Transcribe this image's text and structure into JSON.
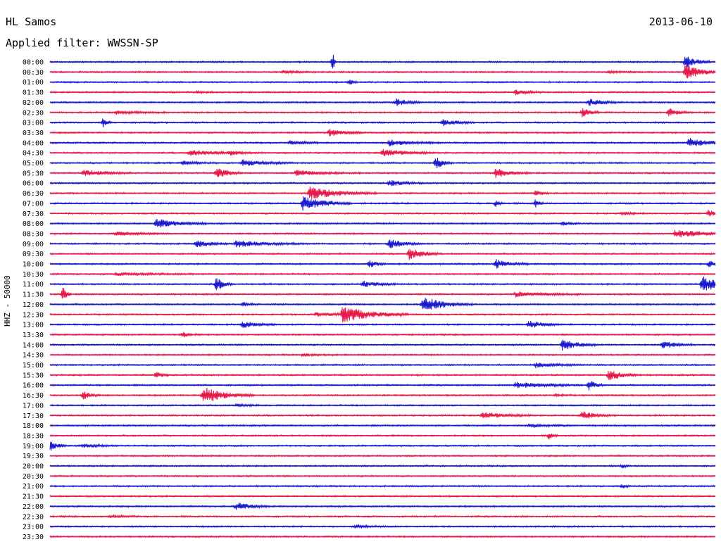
{
  "header": {
    "station": "HL Samos",
    "date": "2013-06-10",
    "filter": "Applied filter: WWSSN-SP"
  },
  "chart_data": {
    "type": "line",
    "title": "HL Samos",
    "subtitle": "Applied filter: WWSSN-SP",
    "ylabel": "HHZ - 50000",
    "date": "2013-06-10",
    "row_labels": [
      "00:00",
      "00:30",
      "01:00",
      "01:30",
      "02:00",
      "02:30",
      "03:00",
      "03:30",
      "04:00",
      "04:30",
      "05:00",
      "05:30",
      "06:00",
      "06:30",
      "07:00",
      "07:30",
      "08:00",
      "08:30",
      "09:00",
      "09:30",
      "10:00",
      "10:30",
      "11:00",
      "11:30",
      "12:00",
      "12:30",
      "13:00",
      "13:30",
      "14:00",
      "14:30",
      "15:00",
      "15:30",
      "16:00",
      "16:30",
      "17:00",
      "17:30",
      "18:00",
      "18:30",
      "19:00",
      "19:30",
      "20:00",
      "20:30",
      "21:00",
      "21:30",
      "22:00",
      "22:30",
      "23:00",
      "23:30"
    ],
    "colors": {
      "even_rows": "#1a1acd",
      "odd_rows": "#e6194b"
    },
    "grid": false,
    "events": [
      {
        "row": 0,
        "pos": 0.425,
        "amp": 1.8,
        "dur": 0.002
      },
      {
        "row": 0,
        "pos": 0.955,
        "amp": 1.0,
        "dur": 0.015
      },
      {
        "row": 1,
        "pos": 0.35,
        "amp": 0.2,
        "dur": 0.02
      },
      {
        "row": 1,
        "pos": 0.955,
        "amp": 1.2,
        "dur": 0.02
      },
      {
        "row": 1,
        "pos": 0.84,
        "amp": 0.15,
        "dur": 0.02
      },
      {
        "row": 2,
        "pos": 0.45,
        "amp": 0.5,
        "dur": 0.005
      },
      {
        "row": 3,
        "pos": 0.7,
        "amp": 0.4,
        "dur": 0.015
      },
      {
        "row": 3,
        "pos": 0.22,
        "amp": 0.1,
        "dur": 0.02
      },
      {
        "row": 4,
        "pos": 0.52,
        "amp": 0.6,
        "dur": 0.015
      },
      {
        "row": 4,
        "pos": 0.81,
        "amp": 0.5,
        "dur": 0.02
      },
      {
        "row": 5,
        "pos": 0.1,
        "amp": 0.25,
        "dur": 0.03
      },
      {
        "row": 5,
        "pos": 0.8,
        "amp": 0.7,
        "dur": 0.01
      },
      {
        "row": 5,
        "pos": 0.93,
        "amp": 0.6,
        "dur": 0.015
      },
      {
        "row": 6,
        "pos": 0.08,
        "amp": 0.7,
        "dur": 0.005
      },
      {
        "row": 6,
        "pos": 0.59,
        "amp": 0.5,
        "dur": 0.02
      },
      {
        "row": 7,
        "pos": 0.42,
        "amp": 0.6,
        "dur": 0.02
      },
      {
        "row": 8,
        "pos": 0.36,
        "amp": 0.3,
        "dur": 0.02
      },
      {
        "row": 8,
        "pos": 0.51,
        "amp": 0.5,
        "dur": 0.03
      },
      {
        "row": 8,
        "pos": 0.96,
        "amp": 0.7,
        "dur": 0.03
      },
      {
        "row": 9,
        "pos": 0.21,
        "amp": 0.5,
        "dur": 0.03
      },
      {
        "row": 9,
        "pos": 0.5,
        "amp": 0.6,
        "dur": 0.03
      },
      {
        "row": 9,
        "pos": 0.27,
        "amp": 0.3,
        "dur": 0.02
      },
      {
        "row": 10,
        "pos": 0.29,
        "amp": 0.5,
        "dur": 0.03
      },
      {
        "row": 10,
        "pos": 0.58,
        "amp": 1.0,
        "dur": 0.01
      },
      {
        "row": 10,
        "pos": 0.2,
        "amp": 0.3,
        "dur": 0.02
      },
      {
        "row": 11,
        "pos": 0.05,
        "amp": 0.5,
        "dur": 0.03
      },
      {
        "row": 11,
        "pos": 0.25,
        "amp": 0.9,
        "dur": 0.015
      },
      {
        "row": 11,
        "pos": 0.37,
        "amp": 0.4,
        "dur": 0.04
      },
      {
        "row": 11,
        "pos": 0.67,
        "amp": 0.8,
        "dur": 0.02
      },
      {
        "row": 12,
        "pos": 0.51,
        "amp": 0.5,
        "dur": 0.02
      },
      {
        "row": 13,
        "pos": 0.39,
        "amp": 1.0,
        "dur": 0.04
      },
      {
        "row": 13,
        "pos": 0.73,
        "amp": 0.4,
        "dur": 0.01
      },
      {
        "row": 14,
        "pos": 0.38,
        "amp": 1.1,
        "dur": 0.03
      },
      {
        "row": 14,
        "pos": 0.67,
        "amp": 0.6,
        "dur": 0.005
      },
      {
        "row": 14,
        "pos": 0.73,
        "amp": 0.7,
        "dur": 0.005
      },
      {
        "row": 15,
        "pos": 0.99,
        "amp": 0.6,
        "dur": 0.01
      },
      {
        "row": 15,
        "pos": 0.86,
        "amp": 0.2,
        "dur": 0.02
      },
      {
        "row": 16,
        "pos": 0.16,
        "amp": 0.7,
        "dur": 0.03
      },
      {
        "row": 16,
        "pos": 0.77,
        "amp": 0.3,
        "dur": 0.01
      },
      {
        "row": 17,
        "pos": 0.94,
        "amp": 0.6,
        "dur": 0.04
      },
      {
        "row": 17,
        "pos": 0.1,
        "amp": 0.3,
        "dur": 0.03
      },
      {
        "row": 18,
        "pos": 0.22,
        "amp": 0.6,
        "dur": 0.02
      },
      {
        "row": 18,
        "pos": 0.28,
        "amp": 0.5,
        "dur": 0.04
      },
      {
        "row": 18,
        "pos": 0.51,
        "amp": 0.7,
        "dur": 0.02
      },
      {
        "row": 19,
        "pos": 0.54,
        "amp": 0.9,
        "dur": 0.02
      },
      {
        "row": 20,
        "pos": 0.48,
        "amp": 0.6,
        "dur": 0.01
      },
      {
        "row": 20,
        "pos": 0.67,
        "amp": 0.7,
        "dur": 0.02
      },
      {
        "row": 20,
        "pos": 0.99,
        "amp": 0.5,
        "dur": 0.01
      },
      {
        "row": 21,
        "pos": 0.1,
        "amp": 0.2,
        "dur": 0.05
      },
      {
        "row": 22,
        "pos": 0.25,
        "amp": 1.1,
        "dur": 0.01
      },
      {
        "row": 22,
        "pos": 0.47,
        "amp": 0.5,
        "dur": 0.02
      },
      {
        "row": 22,
        "pos": 0.98,
        "amp": 1.2,
        "dur": 0.03
      },
      {
        "row": 23,
        "pos": 0.02,
        "amp": 1.3,
        "dur": 0.005
      },
      {
        "row": 23,
        "pos": 0.7,
        "amp": 0.4,
        "dur": 0.04
      },
      {
        "row": 24,
        "pos": 0.56,
        "amp": 1.2,
        "dur": 0.03
      },
      {
        "row": 24,
        "pos": 0.29,
        "amp": 0.3,
        "dur": 0.01
      },
      {
        "row": 25,
        "pos": 0.44,
        "amp": 1.2,
        "dur": 0.04
      },
      {
        "row": 25,
        "pos": 0.4,
        "amp": 0.3,
        "dur": 0.03
      },
      {
        "row": 26,
        "pos": 0.29,
        "amp": 0.5,
        "dur": 0.02
      },
      {
        "row": 26,
        "pos": 0.72,
        "amp": 0.6,
        "dur": 0.02
      },
      {
        "row": 27,
        "pos": 0.2,
        "amp": 0.4,
        "dur": 0.01
      },
      {
        "row": 28,
        "pos": 0.77,
        "amp": 0.9,
        "dur": 0.02
      },
      {
        "row": 28,
        "pos": 0.92,
        "amp": 0.6,
        "dur": 0.02
      },
      {
        "row": 29,
        "pos": 0.38,
        "amp": 0.2,
        "dur": 0.02
      },
      {
        "row": 30,
        "pos": 0.73,
        "amp": 0.4,
        "dur": 0.03
      },
      {
        "row": 31,
        "pos": 0.16,
        "amp": 0.5,
        "dur": 0.01
      },
      {
        "row": 31,
        "pos": 0.84,
        "amp": 0.8,
        "dur": 0.02
      },
      {
        "row": 32,
        "pos": 0.7,
        "amp": 0.5,
        "dur": 0.04
      },
      {
        "row": 32,
        "pos": 0.81,
        "amp": 0.8,
        "dur": 0.01
      },
      {
        "row": 33,
        "pos": 0.05,
        "amp": 0.6,
        "dur": 0.01
      },
      {
        "row": 33,
        "pos": 0.23,
        "amp": 1.4,
        "dur": 0.03
      },
      {
        "row": 33,
        "pos": 0.76,
        "amp": 0.2,
        "dur": 0.01
      },
      {
        "row": 34,
        "pos": 0.28,
        "amp": 0.2,
        "dur": 0.02
      },
      {
        "row": 35,
        "pos": 0.65,
        "amp": 0.5,
        "dur": 0.03
      },
      {
        "row": 35,
        "pos": 0.8,
        "amp": 0.6,
        "dur": 0.02
      },
      {
        "row": 36,
        "pos": 0.72,
        "amp": 0.2,
        "dur": 0.03
      },
      {
        "row": 37,
        "pos": 0.75,
        "amp": 0.6,
        "dur": 0.005
      },
      {
        "row": 38,
        "pos": 0.0,
        "amp": 0.8,
        "dur": 0.01
      },
      {
        "row": 38,
        "pos": 0.05,
        "amp": 0.3,
        "dur": 0.02
      },
      {
        "row": 40,
        "pos": 0.86,
        "amp": 0.3,
        "dur": 0.005
      },
      {
        "row": 42,
        "pos": 0.86,
        "amp": 0.3,
        "dur": 0.005
      },
      {
        "row": 44,
        "pos": 0.28,
        "amp": 0.6,
        "dur": 0.02
      },
      {
        "row": 45,
        "pos": 0.09,
        "amp": 0.2,
        "dur": 0.02
      },
      {
        "row": 46,
        "pos": 0.46,
        "amp": 0.2,
        "dur": 0.02
      }
    ]
  }
}
